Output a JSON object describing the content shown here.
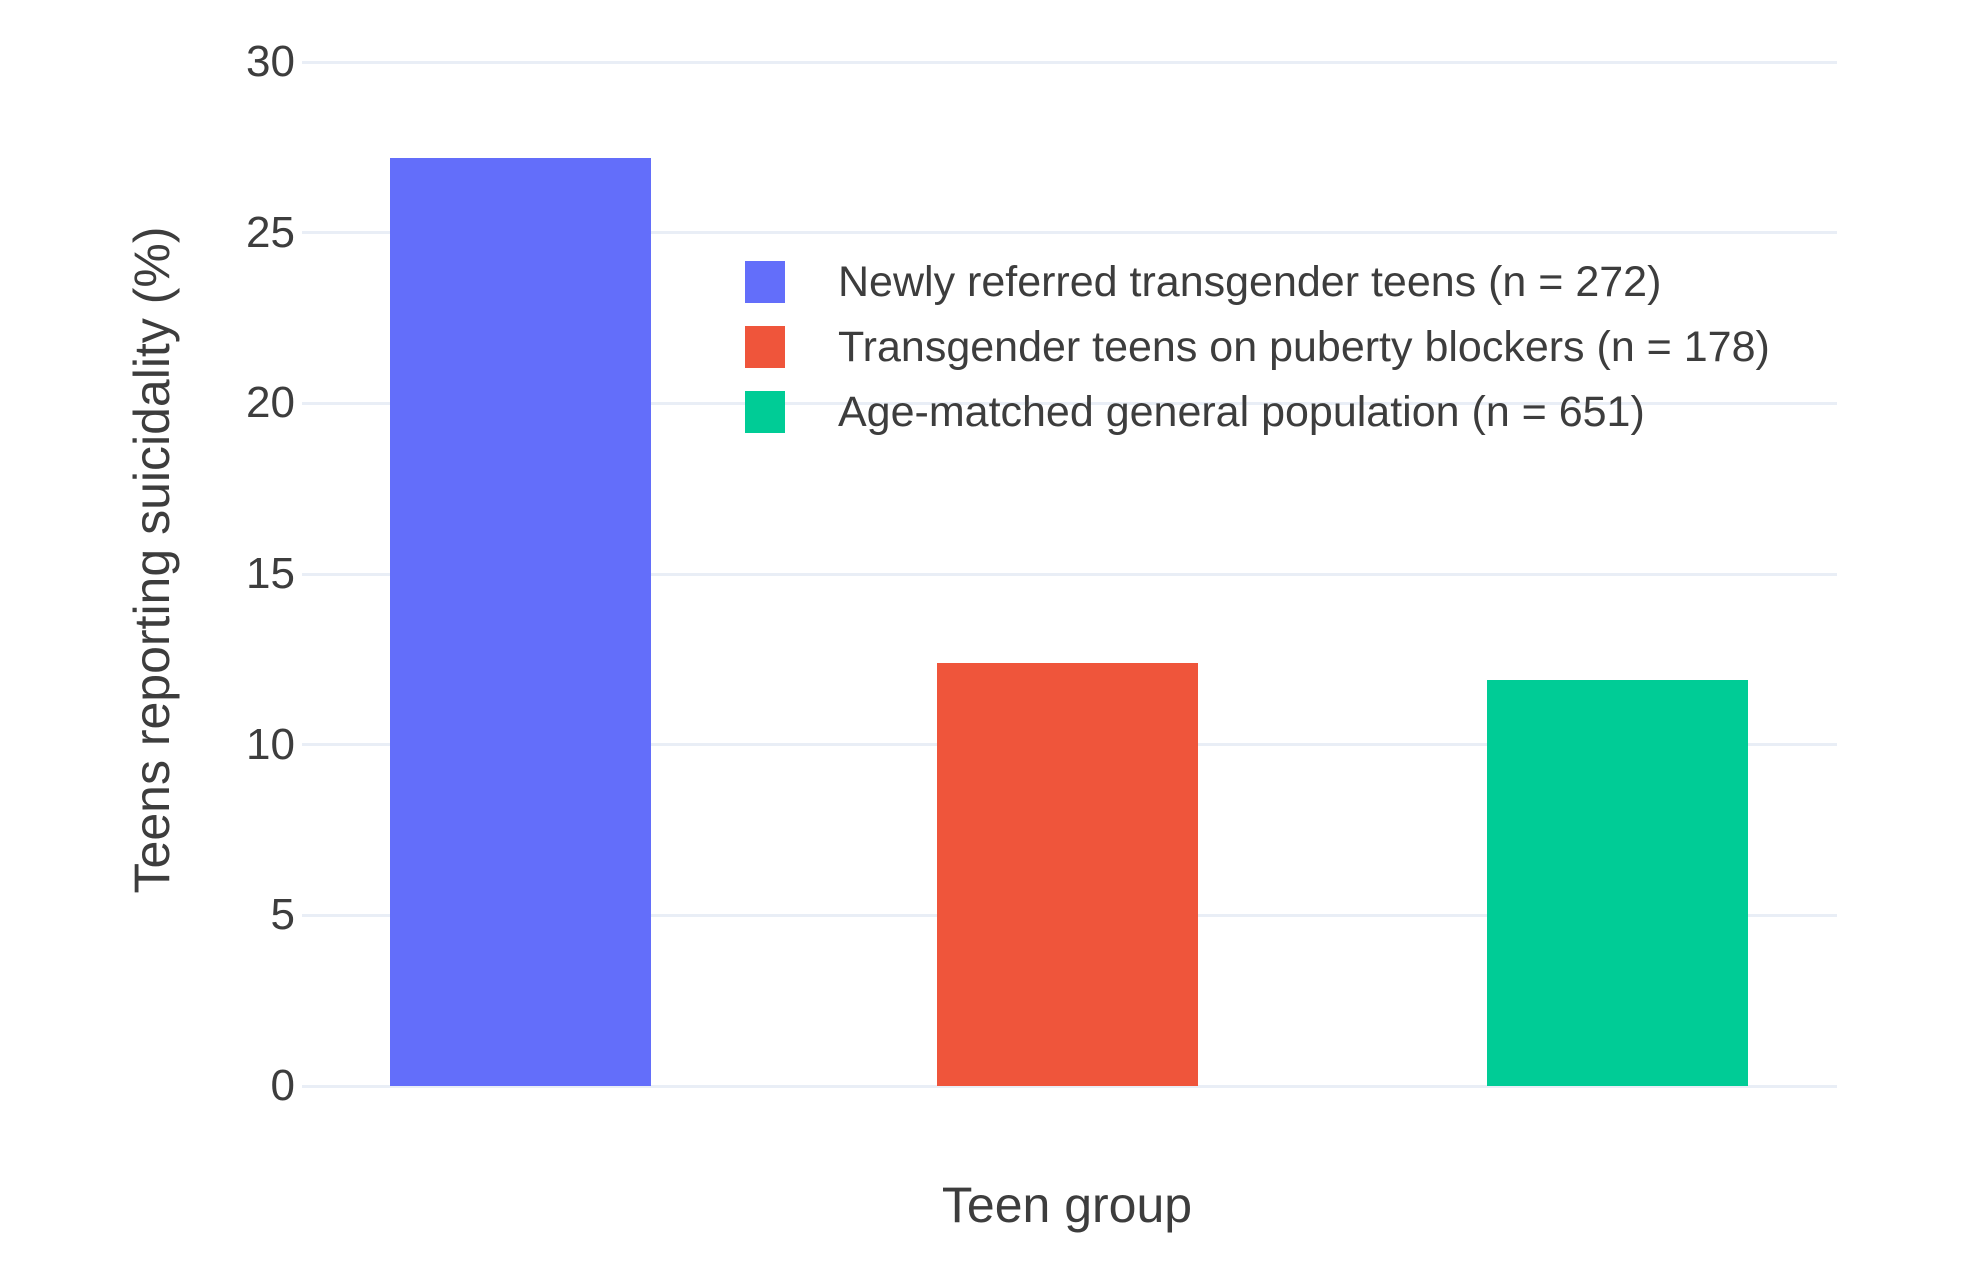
{
  "chart_data": {
    "type": "bar",
    "categories": [
      "Newly referred transgender teens (n = 272)",
      "Transgender teens on puberty blockers (n = 178)",
      "Age-matched general population (n = 651)"
    ],
    "values": [
      27.2,
      12.4,
      11.9
    ],
    "colors": [
      "#636EFA",
      "#EF553B",
      "#00CC96"
    ],
    "title": "",
    "xlabel": "Teen group",
    "ylabel": "Teens reporting suicidality (%)",
    "ylim": [
      0,
      30
    ],
    "yticks": [
      0,
      5,
      10,
      15,
      20,
      25,
      30
    ],
    "grid": true,
    "legend_position": "inside-top-left",
    "background_color": "#ffffff",
    "gridline_color": "#e9eef6",
    "text_color": "#3d3d3d"
  },
  "legend": {
    "items": [
      {
        "label": "Newly referred transgender teens (n = 272)",
        "color": "#636EFA"
      },
      {
        "label": "Transgender teens on puberty blockers (n = 178)",
        "color": "#EF553B"
      },
      {
        "label": "Age-matched general population (n = 651)",
        "color": "#00CC96"
      }
    ]
  }
}
